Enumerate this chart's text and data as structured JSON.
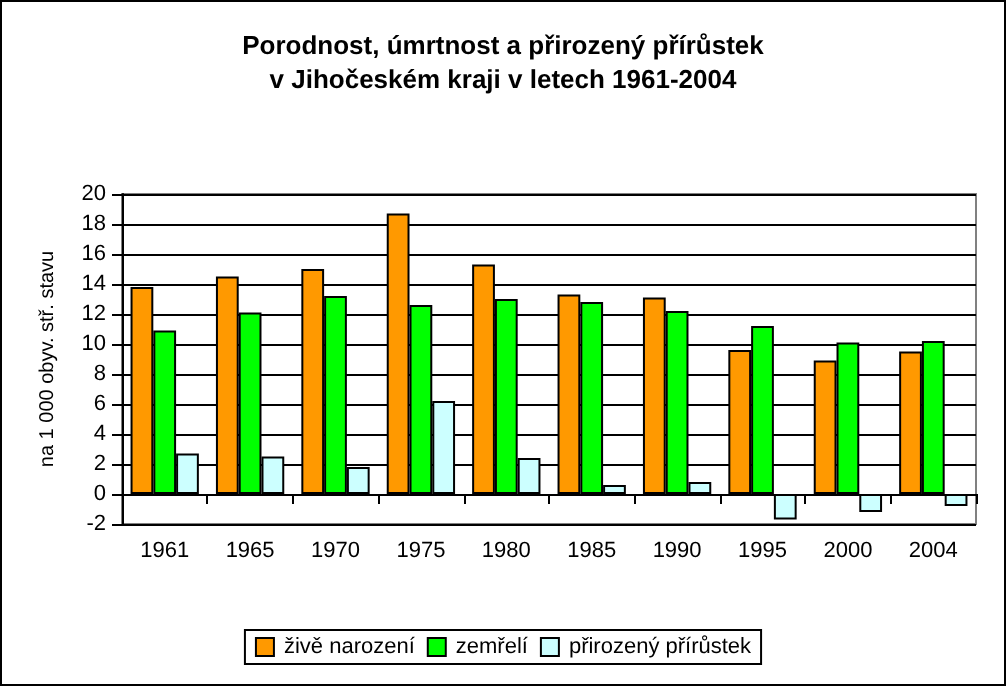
{
  "chart_data": {
    "type": "bar",
    "title": "Porodnost, úmrtnost a přirozený přírůstek\nv Jihočeském kraji v letech 1961-2004",
    "ylabel": "na 1 000 obyv. stř. stavu",
    "categories": [
      "1961",
      "1965",
      "1970",
      "1975",
      "1980",
      "1985",
      "1990",
      "1995",
      "2000",
      "2004"
    ],
    "series": [
      {
        "name": "živě narození",
        "color": "#ff9900",
        "values": [
          13.8,
          14.5,
          15.0,
          18.7,
          15.3,
          13.3,
          13.1,
          9.6,
          8.9,
          9.5
        ]
      },
      {
        "name": "zemřelí",
        "color": "#00ff00",
        "values": [
          10.9,
          12.1,
          13.2,
          12.6,
          13.0,
          12.8,
          12.2,
          11.2,
          10.1,
          10.2
        ]
      },
      {
        "name": "přirozený přírůstek",
        "color": "#ccffff",
        "values": [
          2.7,
          2.5,
          1.8,
          6.2,
          2.4,
          0.6,
          0.8,
          -1.7,
          -1.2,
          -0.8
        ]
      }
    ],
    "ylim": [
      -2,
      20
    ],
    "yticks": [
      -2,
      0,
      2,
      4,
      6,
      8,
      10,
      12,
      14,
      16,
      18,
      20
    ],
    "grid": "y",
    "legend": "bottom"
  }
}
